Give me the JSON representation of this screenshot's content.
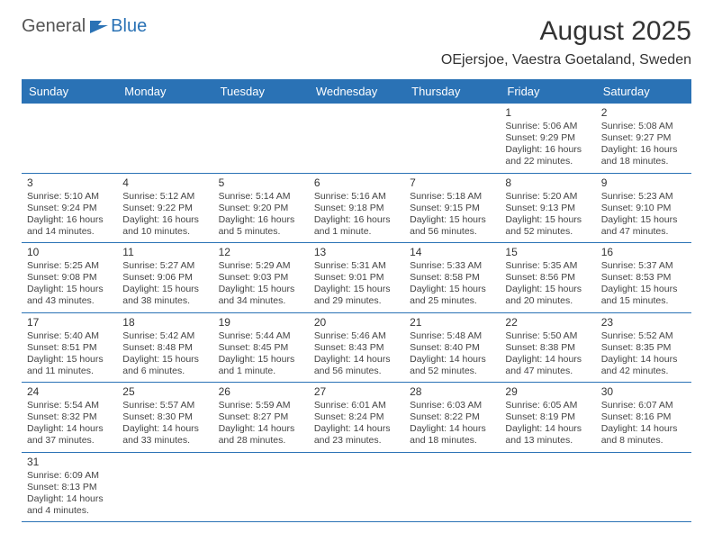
{
  "logo": {
    "text_a": "General",
    "text_b": "Blue",
    "accent_color": "#2a72b5"
  },
  "header": {
    "month_title": "August 2025",
    "location": "OEjersjoe, Vaestra Goetaland, Sweden"
  },
  "colors": {
    "header_bg": "#2a72b5",
    "header_text": "#ffffff",
    "border": "#2a72b5",
    "body_text": "#444444"
  },
  "days_of_week": [
    "Sunday",
    "Monday",
    "Tuesday",
    "Wednesday",
    "Thursday",
    "Friday",
    "Saturday"
  ],
  "weeks": [
    [
      null,
      null,
      null,
      null,
      null,
      {
        "n": "1",
        "sr": "Sunrise: 5:06 AM",
        "ss": "Sunset: 9:29 PM",
        "d1": "Daylight: 16 hours",
        "d2": "and 22 minutes."
      },
      {
        "n": "2",
        "sr": "Sunrise: 5:08 AM",
        "ss": "Sunset: 9:27 PM",
        "d1": "Daylight: 16 hours",
        "d2": "and 18 minutes."
      }
    ],
    [
      {
        "n": "3",
        "sr": "Sunrise: 5:10 AM",
        "ss": "Sunset: 9:24 PM",
        "d1": "Daylight: 16 hours",
        "d2": "and 14 minutes."
      },
      {
        "n": "4",
        "sr": "Sunrise: 5:12 AM",
        "ss": "Sunset: 9:22 PM",
        "d1": "Daylight: 16 hours",
        "d2": "and 10 minutes."
      },
      {
        "n": "5",
        "sr": "Sunrise: 5:14 AM",
        "ss": "Sunset: 9:20 PM",
        "d1": "Daylight: 16 hours",
        "d2": "and 5 minutes."
      },
      {
        "n": "6",
        "sr": "Sunrise: 5:16 AM",
        "ss": "Sunset: 9:18 PM",
        "d1": "Daylight: 16 hours",
        "d2": "and 1 minute."
      },
      {
        "n": "7",
        "sr": "Sunrise: 5:18 AM",
        "ss": "Sunset: 9:15 PM",
        "d1": "Daylight: 15 hours",
        "d2": "and 56 minutes."
      },
      {
        "n": "8",
        "sr": "Sunrise: 5:20 AM",
        "ss": "Sunset: 9:13 PM",
        "d1": "Daylight: 15 hours",
        "d2": "and 52 minutes."
      },
      {
        "n": "9",
        "sr": "Sunrise: 5:23 AM",
        "ss": "Sunset: 9:10 PM",
        "d1": "Daylight: 15 hours",
        "d2": "and 47 minutes."
      }
    ],
    [
      {
        "n": "10",
        "sr": "Sunrise: 5:25 AM",
        "ss": "Sunset: 9:08 PM",
        "d1": "Daylight: 15 hours",
        "d2": "and 43 minutes."
      },
      {
        "n": "11",
        "sr": "Sunrise: 5:27 AM",
        "ss": "Sunset: 9:06 PM",
        "d1": "Daylight: 15 hours",
        "d2": "and 38 minutes."
      },
      {
        "n": "12",
        "sr": "Sunrise: 5:29 AM",
        "ss": "Sunset: 9:03 PM",
        "d1": "Daylight: 15 hours",
        "d2": "and 34 minutes."
      },
      {
        "n": "13",
        "sr": "Sunrise: 5:31 AM",
        "ss": "Sunset: 9:01 PM",
        "d1": "Daylight: 15 hours",
        "d2": "and 29 minutes."
      },
      {
        "n": "14",
        "sr": "Sunrise: 5:33 AM",
        "ss": "Sunset: 8:58 PM",
        "d1": "Daylight: 15 hours",
        "d2": "and 25 minutes."
      },
      {
        "n": "15",
        "sr": "Sunrise: 5:35 AM",
        "ss": "Sunset: 8:56 PM",
        "d1": "Daylight: 15 hours",
        "d2": "and 20 minutes."
      },
      {
        "n": "16",
        "sr": "Sunrise: 5:37 AM",
        "ss": "Sunset: 8:53 PM",
        "d1": "Daylight: 15 hours",
        "d2": "and 15 minutes."
      }
    ],
    [
      {
        "n": "17",
        "sr": "Sunrise: 5:40 AM",
        "ss": "Sunset: 8:51 PM",
        "d1": "Daylight: 15 hours",
        "d2": "and 11 minutes."
      },
      {
        "n": "18",
        "sr": "Sunrise: 5:42 AM",
        "ss": "Sunset: 8:48 PM",
        "d1": "Daylight: 15 hours",
        "d2": "and 6 minutes."
      },
      {
        "n": "19",
        "sr": "Sunrise: 5:44 AM",
        "ss": "Sunset: 8:45 PM",
        "d1": "Daylight: 15 hours",
        "d2": "and 1 minute."
      },
      {
        "n": "20",
        "sr": "Sunrise: 5:46 AM",
        "ss": "Sunset: 8:43 PM",
        "d1": "Daylight: 14 hours",
        "d2": "and 56 minutes."
      },
      {
        "n": "21",
        "sr": "Sunrise: 5:48 AM",
        "ss": "Sunset: 8:40 PM",
        "d1": "Daylight: 14 hours",
        "d2": "and 52 minutes."
      },
      {
        "n": "22",
        "sr": "Sunrise: 5:50 AM",
        "ss": "Sunset: 8:38 PM",
        "d1": "Daylight: 14 hours",
        "d2": "and 47 minutes."
      },
      {
        "n": "23",
        "sr": "Sunrise: 5:52 AM",
        "ss": "Sunset: 8:35 PM",
        "d1": "Daylight: 14 hours",
        "d2": "and 42 minutes."
      }
    ],
    [
      {
        "n": "24",
        "sr": "Sunrise: 5:54 AM",
        "ss": "Sunset: 8:32 PM",
        "d1": "Daylight: 14 hours",
        "d2": "and 37 minutes."
      },
      {
        "n": "25",
        "sr": "Sunrise: 5:57 AM",
        "ss": "Sunset: 8:30 PM",
        "d1": "Daylight: 14 hours",
        "d2": "and 33 minutes."
      },
      {
        "n": "26",
        "sr": "Sunrise: 5:59 AM",
        "ss": "Sunset: 8:27 PM",
        "d1": "Daylight: 14 hours",
        "d2": "and 28 minutes."
      },
      {
        "n": "27",
        "sr": "Sunrise: 6:01 AM",
        "ss": "Sunset: 8:24 PM",
        "d1": "Daylight: 14 hours",
        "d2": "and 23 minutes."
      },
      {
        "n": "28",
        "sr": "Sunrise: 6:03 AM",
        "ss": "Sunset: 8:22 PM",
        "d1": "Daylight: 14 hours",
        "d2": "and 18 minutes."
      },
      {
        "n": "29",
        "sr": "Sunrise: 6:05 AM",
        "ss": "Sunset: 8:19 PM",
        "d1": "Daylight: 14 hours",
        "d2": "and 13 minutes."
      },
      {
        "n": "30",
        "sr": "Sunrise: 6:07 AM",
        "ss": "Sunset: 8:16 PM",
        "d1": "Daylight: 14 hours",
        "d2": "and 8 minutes."
      }
    ],
    [
      {
        "n": "31",
        "sr": "Sunrise: 6:09 AM",
        "ss": "Sunset: 8:13 PM",
        "d1": "Daylight: 14 hours",
        "d2": "and 4 minutes."
      },
      null,
      null,
      null,
      null,
      null,
      null
    ]
  ]
}
